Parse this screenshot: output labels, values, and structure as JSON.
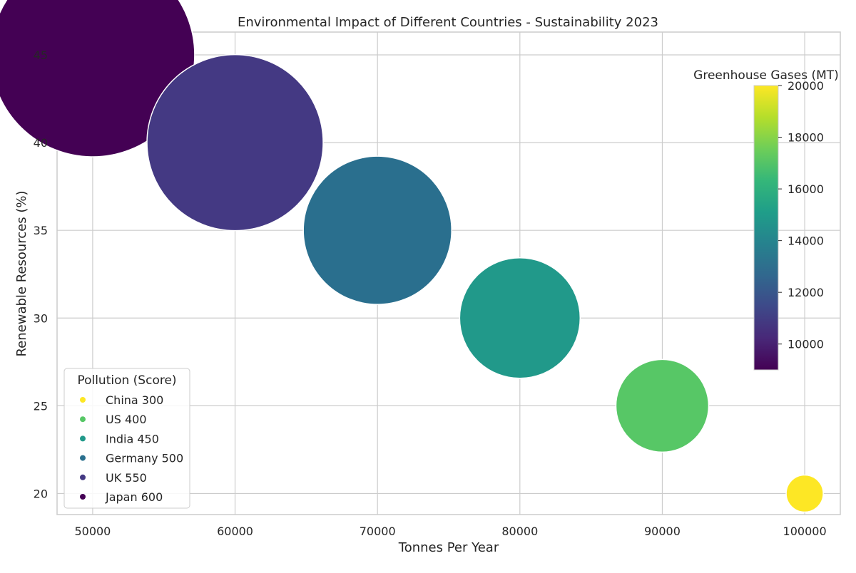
{
  "chart_data": {
    "type": "scatter",
    "title": "Environmental Impact of Different Countries - Sustainability 2023",
    "xlabel": "Tonnes Per Year",
    "ylabel": "Renewable Resources (%)",
    "xlim": [
      47500,
      102500
    ],
    "ylim": [
      18.8,
      46.3
    ],
    "xticks": [
      50000,
      60000,
      70000,
      80000,
      90000,
      100000
    ],
    "yticks": [
      20,
      25,
      30,
      35,
      40,
      45
    ],
    "grid": true,
    "size_encoding": "Pollution (Score)",
    "color_encoding": "Greenhouse Gases (MT)",
    "points": [
      {
        "country": "Japan",
        "x": 50000,
        "y": 45,
        "pollution": 600,
        "ghg": 9000,
        "color": "#440154"
      },
      {
        "country": "UK",
        "x": 60000,
        "y": 40,
        "pollution": 550,
        "ghg": 11000,
        "color": "#443983"
      },
      {
        "country": "Germany",
        "x": 70000,
        "y": 35,
        "pollution": 500,
        "ghg": 13000,
        "color": "#2a6f8e"
      },
      {
        "country": "India",
        "x": 80000,
        "y": 30,
        "pollution": 450,
        "ghg": 15000,
        "color": "#21998a"
      },
      {
        "country": "US",
        "x": 90000,
        "y": 25,
        "pollution": 400,
        "ghg": 17000,
        "color": "#57c766"
      },
      {
        "country": "China",
        "x": 100000,
        "y": 20,
        "pollution": 300,
        "ghg": 20000,
        "color": "#fde725"
      }
    ],
    "legend": {
      "title": "Pollution (Score)",
      "placement": "lower-left",
      "entries": [
        {
          "label": "China 300",
          "color": "#fde725"
        },
        {
          "label": "US 400",
          "color": "#57c766"
        },
        {
          "label": "India 450",
          "color": "#21998a"
        },
        {
          "label": "Germany 500",
          "color": "#2a6f8e"
        },
        {
          "label": "UK 550",
          "color": "#443983"
        },
        {
          "label": "Japan 600",
          "color": "#440154"
        }
      ]
    },
    "colorbar": {
      "title": "Greenhouse Gases (MT)",
      "placement": "right",
      "range": [
        9000,
        20000
      ],
      "ticks": [
        10000,
        12000,
        14000,
        16000,
        18000,
        20000
      ],
      "colormap": [
        "#440154",
        "#482878",
        "#3e4989",
        "#31688e",
        "#26828e",
        "#1f9e89",
        "#35b779",
        "#6ece58",
        "#b5de2b",
        "#fde725"
      ]
    }
  }
}
